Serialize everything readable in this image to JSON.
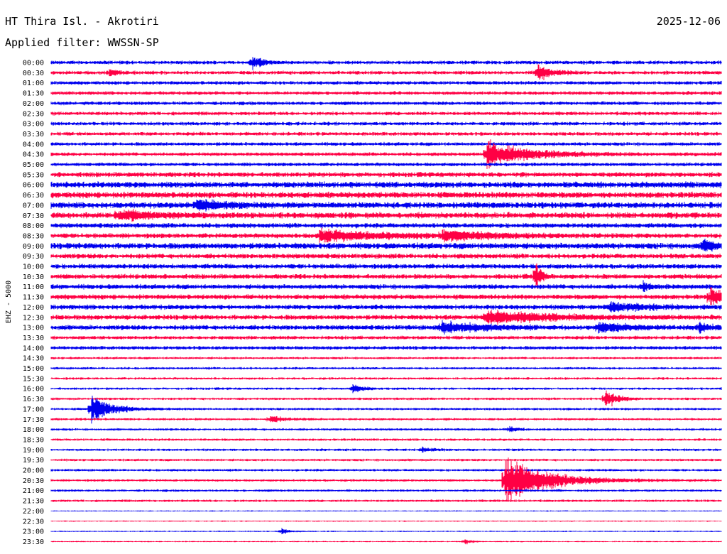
{
  "header": {
    "station": "HT Thira Isl. - Akrotiri",
    "date": "2025-12-06",
    "filter": "Applied filter: WWSSN-SP"
  },
  "colors": {
    "blue": "#0000ee",
    "red": "#ff0044",
    "text": "#000000",
    "background": "#ffffff"
  },
  "chart_data": {
    "type": "line",
    "title": "HT Thira Isl. - Akrotiri",
    "subtitle": "Applied filter: WWSSN-SP",
    "ylabel": "EHZ - 5000",
    "xlabel": "",
    "grid": false,
    "legend": "none",
    "color_cycle": [
      "blue",
      "red"
    ],
    "rows": [
      "00:00",
      "00:30",
      "01:00",
      "01:30",
      "02:00",
      "02:30",
      "03:00",
      "03:30",
      "04:00",
      "04:30",
      "05:00",
      "05:30",
      "06:00",
      "06:30",
      "07:00",
      "07:30",
      "08:00",
      "08:30",
      "09:00",
      "09:30",
      "10:00",
      "10:30",
      "11:00",
      "11:30",
      "12:00",
      "12:30",
      "13:00",
      "13:30",
      "14:00",
      "14:30",
      "15:00",
      "15:30",
      "16:00",
      "16:30",
      "17:00",
      "17:30",
      "18:00",
      "18:30",
      "19:00",
      "19:30",
      "20:00",
      "20:30",
      "21:00",
      "21:30",
      "22:00",
      "22:30",
      "23:00",
      "23:30"
    ],
    "row_minutes": 30,
    "noise_level": [
      3,
      3,
      3,
      3,
      3,
      3,
      3,
      3,
      3,
      3,
      3,
      4,
      5,
      5,
      5,
      5,
      4,
      4,
      5,
      4,
      4,
      4,
      4,
      4,
      4,
      4,
      4,
      3,
      3,
      2,
      2,
      2,
      2,
      2,
      2,
      2,
      2,
      2,
      2,
      2,
      2,
      2,
      2,
      2,
      1,
      1,
      1,
      1
    ],
    "events": [
      {
        "row": "00:00",
        "minute": 9.0,
        "amplitude": 12,
        "duration_min": 0.8
      },
      {
        "row": "00:30",
        "minute": 2.6,
        "amplitude": 6,
        "duration_min": 0.8
      },
      {
        "row": "00:30",
        "minute": 21.8,
        "amplitude": 13,
        "duration_min": 1.2
      },
      {
        "row": "04:30",
        "minute": 19.5,
        "amplitude": 22,
        "duration_min": 3.5
      },
      {
        "row": "07:00",
        "minute": 6.5,
        "amplitude": 9,
        "duration_min": 2.5
      },
      {
        "row": "07:30",
        "minute": 3.0,
        "amplitude": 8,
        "duration_min": 3.0
      },
      {
        "row": "08:30",
        "minute": 12.0,
        "amplitude": 10,
        "duration_min": 5.0
      },
      {
        "row": "08:30",
        "minute": 17.5,
        "amplitude": 8,
        "duration_min": 4.0
      },
      {
        "row": "09:00",
        "minute": 29.2,
        "amplitude": 10,
        "duration_min": 1.0
      },
      {
        "row": "10:30",
        "minute": 21.7,
        "amplitude": 26,
        "duration_min": 0.4
      },
      {
        "row": "11:00",
        "minute": 26.5,
        "amplitude": 7,
        "duration_min": 0.8
      },
      {
        "row": "11:30",
        "minute": 29.5,
        "amplitude": 17,
        "duration_min": 1.0
      },
      {
        "row": "12:00",
        "minute": 25.0,
        "amplitude": 7,
        "duration_min": 3.0
      },
      {
        "row": "12:30",
        "minute": 19.5,
        "amplitude": 11,
        "duration_min": 5.0
      },
      {
        "row": "13:00",
        "minute": 17.5,
        "amplitude": 9,
        "duration_min": 3.5
      },
      {
        "row": "13:00",
        "minute": 24.5,
        "amplitude": 8,
        "duration_min": 2.5
      },
      {
        "row": "13:00",
        "minute": 29.0,
        "amplitude": 7,
        "duration_min": 1.0
      },
      {
        "row": "16:00",
        "minute": 13.5,
        "amplitude": 8,
        "duration_min": 0.8
      },
      {
        "row": "16:30",
        "minute": 24.8,
        "amplitude": 18,
        "duration_min": 0.9
      },
      {
        "row": "17:00",
        "minute": 1.8,
        "amplitude": 24,
        "duration_min": 1.6
      },
      {
        "row": "17:30",
        "minute": 9.8,
        "amplitude": 7,
        "duration_min": 0.8
      },
      {
        "row": "18:00",
        "minute": 20.5,
        "amplitude": 6,
        "duration_min": 0.6
      },
      {
        "row": "19:00",
        "minute": 16.6,
        "amplitude": 4,
        "duration_min": 0.8
      },
      {
        "row": "20:30",
        "minute": 20.3,
        "amplitude": 40,
        "duration_min": 3.5
      },
      {
        "row": "23:00",
        "minute": 10.3,
        "amplitude": 6,
        "duration_min": 0.6
      },
      {
        "row": "23:30",
        "minute": 18.5,
        "amplitude": 5,
        "duration_min": 0.6
      }
    ]
  }
}
